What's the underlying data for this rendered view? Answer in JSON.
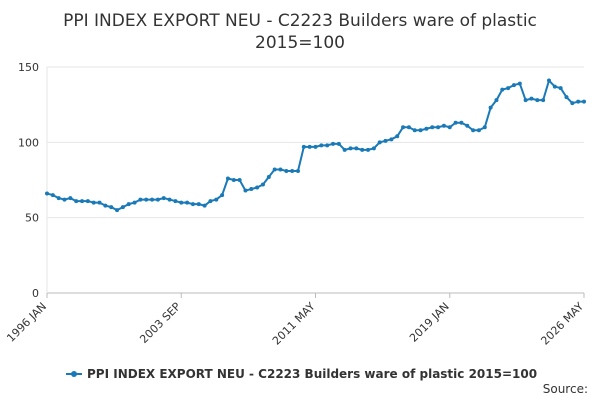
{
  "chart_data": {
    "type": "line",
    "title": "PPI INDEX EXPORT NEU - C2223 Builders ware of plastic",
    "subtitle": "2015=100",
    "source": "Source:",
    "categories": [
      "1996 JAN",
      null,
      null,
      null,
      null,
      null,
      null,
      null,
      null,
      null,
      null,
      null,
      null,
      null,
      null,
      null,
      null,
      null,
      null,
      null,
      null,
      null,
      null,
      "2003 SEP",
      null,
      null,
      null,
      null,
      null,
      null,
      null,
      null,
      null,
      null,
      null,
      null,
      null,
      null,
      null,
      null,
      null,
      null,
      null,
      null,
      null,
      null,
      "2011 MAY",
      null,
      null,
      null,
      null,
      null,
      null,
      null,
      null,
      null,
      null,
      null,
      null,
      null,
      null,
      null,
      null,
      null,
      null,
      null,
      null,
      null,
      null,
      "2019 JAN",
      null,
      null,
      null,
      null,
      null,
      null,
      null,
      null,
      null,
      null,
      null,
      null,
      null,
      null,
      null,
      null,
      null,
      null,
      null,
      null,
      null,
      null,
      "2026 MAY"
    ],
    "series": [
      {
        "name": "PPI INDEX EXPORT NEU - C2223 Builders ware of plastic 2015=100",
        "color": "#1a7ab8",
        "values": [
          66,
          65,
          63,
          62,
          63,
          61,
          61,
          61,
          60,
          60,
          58,
          57,
          55,
          57,
          59,
          60,
          62,
          62,
          62,
          62,
          63,
          62,
          61,
          60,
          60,
          59,
          59,
          58,
          61,
          62,
          65,
          76,
          75,
          75,
          68,
          69,
          70,
          72,
          77,
          82,
          82,
          81,
          81,
          81,
          97,
          97,
          97,
          98,
          98,
          99,
          99,
          95,
          96,
          96,
          95,
          95,
          96,
          100,
          101,
          102,
          104,
          110,
          110,
          108,
          108,
          109,
          110,
          110,
          111,
          110,
          113,
          113,
          111,
          108,
          108,
          110,
          123,
          128,
          135,
          136,
          138,
          139,
          128,
          129,
          128,
          128,
          141,
          137,
          136,
          130,
          126,
          127,
          127
        ]
      }
    ],
    "ylim": [
      0,
      150
    ],
    "yticks": [
      0,
      50,
      100,
      150
    ],
    "grid": true,
    "legend": "bottom"
  }
}
